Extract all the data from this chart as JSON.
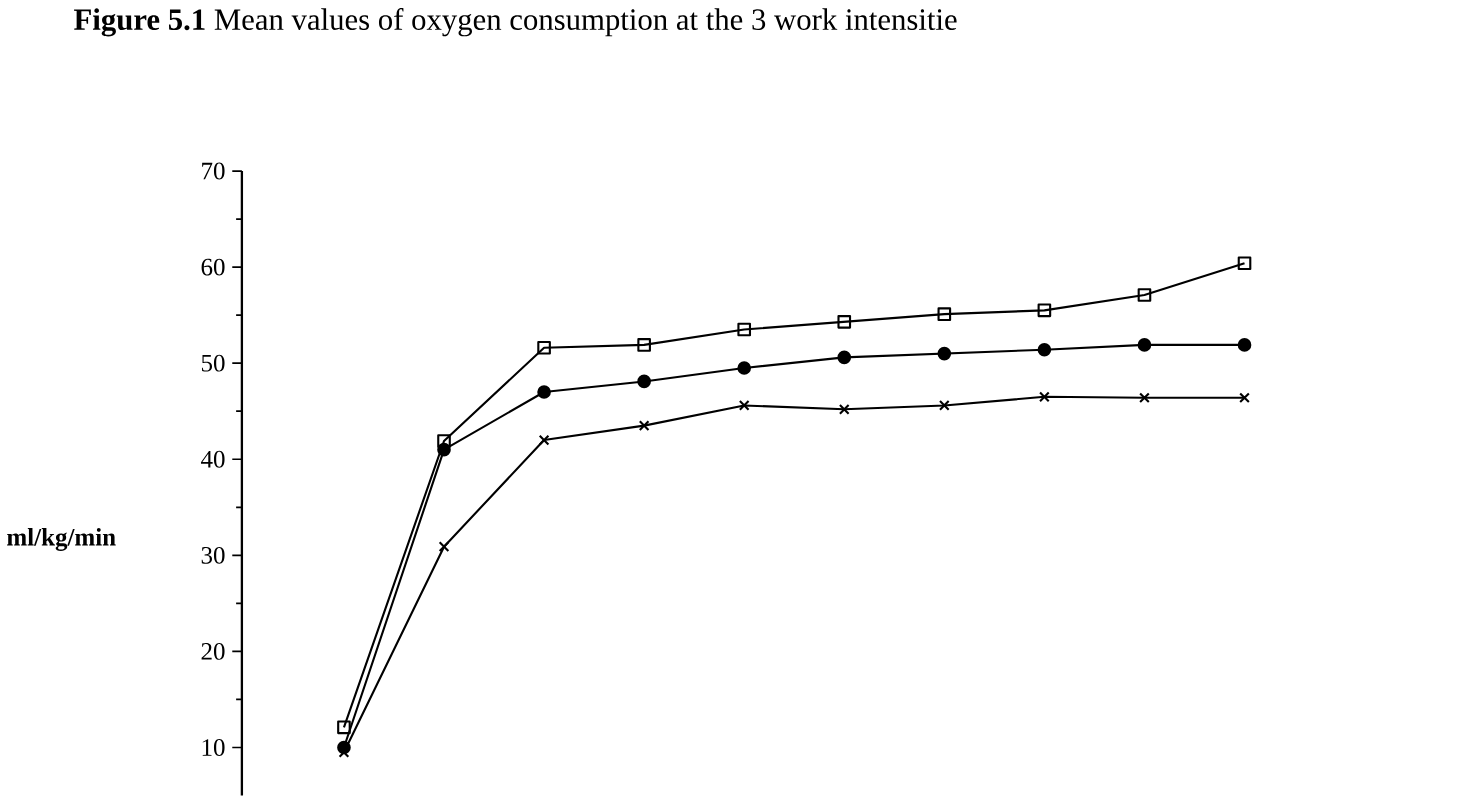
{
  "chart_data": {
    "type": "line",
    "title": "**Figure 5.1** Mean values of oxygen consumption at the 3 work intensitie",
    "ylabel": "ml/kg/min",
    "categories": [
      null,
      null,
      null,
      null,
      null,
      null,
      null,
      null,
      null,
      null
    ],
    "series": [
      {
        "color": "#000000",
        "marker": "square",
        "values": [
          12.1,
          41.9,
          51.6,
          51.9,
          53.5,
          54.3,
          55.1,
          55.5,
          57.1,
          60.4
        ]
      },
      {
        "color": "#000000",
        "marker": "circle",
        "values": [
          10,
          41.0,
          47.0,
          48.1,
          49.5,
          50.6,
          51.0,
          51.4,
          51.9,
          51.9
        ]
      },
      {
        "color": "#000000",
        "marker": "cross",
        "values": [
          9.5,
          30.9,
          42.0,
          43.5,
          45.6,
          45.2,
          45.6,
          46.5,
          46.4,
          46.4
        ]
      }
    ],
    "ylim": [
      5,
      70
    ],
    "yticks": [
      10,
      20,
      30,
      40,
      50,
      60,
      70
    ],
    "tick_labels": "y",
    "grid": false,
    "line_style": "solid"
  }
}
